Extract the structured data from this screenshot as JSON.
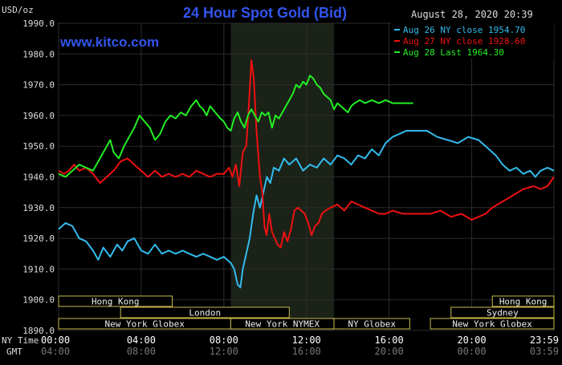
{
  "chart_data": {
    "type": "line",
    "title": "24 Hour Spot Gold (Bid)",
    "unit_label": "USD/oz",
    "timestamp": "August 28, 2020 20:39",
    "watermark": "www.kitco.com",
    "ylim": [
      1890,
      1990
    ],
    "yticks": [
      "1990.0",
      "1980.0",
      "1970.0",
      "1960.0",
      "1950.0",
      "1940.0",
      "1930.0",
      "1920.0",
      "1910.0",
      "1900.0",
      "1890.0"
    ],
    "xlim": [
      0,
      1439
    ],
    "x_row_labels": {
      "ny": "NY Time",
      "gmt": "GMT"
    },
    "xticks": [
      {
        "x": 0,
        "ny": "00:00",
        "gmt": "04:00"
      },
      {
        "x": 240,
        "ny": "04:00",
        "gmt": "08:00"
      },
      {
        "x": 480,
        "ny": "08:00",
        "gmt": "12:00"
      },
      {
        "x": 720,
        "ny": "12:00",
        "gmt": "16:00"
      },
      {
        "x": 960,
        "ny": "16:00",
        "gmt": "20:00"
      },
      {
        "x": 1200,
        "ny": "20:00",
        "gmt": "00:00"
      },
      {
        "x": 1439,
        "ny": "23:59",
        "gmt": "03:59"
      }
    ],
    "shaded_region": [
      500,
      800
    ],
    "sessions": [
      {
        "label": "Hong Kong",
        "start": 0,
        "end": 330,
        "row": 0
      },
      {
        "label": "Hong Kong",
        "start": 1260,
        "end": 1439,
        "row": 0
      },
      {
        "label": "London",
        "start": 180,
        "end": 670,
        "row": 1
      },
      {
        "label": "Sydney",
        "start": 1140,
        "end": 1439,
        "row": 1
      },
      {
        "label": "New York Globex",
        "start": 0,
        "end": 500,
        "row": 2
      },
      {
        "label": "New York NYMEX",
        "start": 500,
        "end": 800,
        "row": 2
      },
      {
        "label": "NY Globex",
        "start": 800,
        "end": 1020,
        "row": 2
      },
      {
        "label": "New York Globex",
        "start": 1080,
        "end": 1439,
        "row": 2
      }
    ],
    "series": [
      {
        "name": "Aug 26 NY close 1954.70",
        "color": "#33bbee",
        "points": [
          [
            0,
            1923
          ],
          [
            20,
            1925
          ],
          [
            40,
            1924
          ],
          [
            60,
            1920
          ],
          [
            80,
            1919
          ],
          [
            100,
            1916
          ],
          [
            115,
            1913
          ],
          [
            130,
            1917
          ],
          [
            150,
            1914
          ],
          [
            170,
            1918
          ],
          [
            185,
            1916
          ],
          [
            200,
            1919
          ],
          [
            220,
            1920
          ],
          [
            240,
            1916
          ],
          [
            260,
            1915
          ],
          [
            280,
            1918
          ],
          [
            300,
            1915
          ],
          [
            320,
            1916
          ],
          [
            340,
            1915
          ],
          [
            360,
            1916
          ],
          [
            380,
            1915
          ],
          [
            400,
            1914
          ],
          [
            420,
            1915
          ],
          [
            440,
            1914
          ],
          [
            460,
            1913
          ],
          [
            480,
            1914
          ],
          [
            500,
            1912
          ],
          [
            510,
            1910
          ],
          [
            520,
            1905
          ],
          [
            528,
            1904
          ],
          [
            535,
            1910
          ],
          [
            545,
            1915
          ],
          [
            555,
            1920
          ],
          [
            565,
            1928
          ],
          [
            575,
            1934
          ],
          [
            585,
            1930
          ],
          [
            595,
            1935
          ],
          [
            605,
            1940
          ],
          [
            615,
            1938
          ],
          [
            625,
            1943
          ],
          [
            640,
            1942
          ],
          [
            655,
            1946
          ],
          [
            670,
            1944
          ],
          [
            690,
            1946
          ],
          [
            710,
            1942
          ],
          [
            730,
            1944
          ],
          [
            750,
            1943
          ],
          [
            770,
            1946
          ],
          [
            790,
            1944
          ],
          [
            810,
            1947
          ],
          [
            830,
            1946
          ],
          [
            850,
            1944
          ],
          [
            870,
            1947
          ],
          [
            890,
            1946
          ],
          [
            910,
            1949
          ],
          [
            930,
            1947
          ],
          [
            950,
            1951
          ],
          [
            970,
            1953
          ],
          [
            990,
            1954
          ],
          [
            1010,
            1955
          ],
          [
            1040,
            1955
          ],
          [
            1070,
            1955
          ],
          [
            1100,
            1953
          ],
          [
            1130,
            1952
          ],
          [
            1160,
            1951
          ],
          [
            1190,
            1953
          ],
          [
            1220,
            1952
          ],
          [
            1250,
            1949
          ],
          [
            1270,
            1947
          ],
          [
            1290,
            1944
          ],
          [
            1310,
            1942
          ],
          [
            1330,
            1943
          ],
          [
            1350,
            1941
          ],
          [
            1370,
            1942
          ],
          [
            1385,
            1940
          ],
          [
            1400,
            1942
          ],
          [
            1420,
            1943
          ],
          [
            1439,
            1942
          ]
        ]
      },
      {
        "name": "Aug 27 NY close 1928.60",
        "color": "#ee1111",
        "points": [
          [
            0,
            1942
          ],
          [
            15,
            1941
          ],
          [
            30,
            1942
          ],
          [
            45,
            1944
          ],
          [
            60,
            1942
          ],
          [
            80,
            1943
          ],
          [
            100,
            1941
          ],
          [
            120,
            1938
          ],
          [
            140,
            1940
          ],
          [
            160,
            1942
          ],
          [
            180,
            1945
          ],
          [
            200,
            1946
          ],
          [
            220,
            1944
          ],
          [
            240,
            1942
          ],
          [
            260,
            1940
          ],
          [
            280,
            1942
          ],
          [
            300,
            1940
          ],
          [
            320,
            1941
          ],
          [
            340,
            1940
          ],
          [
            360,
            1941
          ],
          [
            380,
            1940
          ],
          [
            400,
            1942
          ],
          [
            420,
            1941
          ],
          [
            440,
            1940
          ],
          [
            460,
            1941
          ],
          [
            480,
            1941
          ],
          [
            495,
            1943
          ],
          [
            505,
            1940
          ],
          [
            515,
            1944
          ],
          [
            525,
            1937
          ],
          [
            535,
            1948
          ],
          [
            545,
            1950
          ],
          [
            552,
            1962
          ],
          [
            560,
            1978
          ],
          [
            567,
            1972
          ],
          [
            575,
            1955
          ],
          [
            585,
            1940
          ],
          [
            592,
            1935
          ],
          [
            598,
            1924
          ],
          [
            604,
            1921
          ],
          [
            612,
            1928
          ],
          [
            620,
            1922
          ],
          [
            628,
            1920
          ],
          [
            636,
            1918
          ],
          [
            645,
            1917
          ],
          [
            655,
            1922
          ],
          [
            665,
            1919
          ],
          [
            675,
            1923
          ],
          [
            685,
            1929
          ],
          [
            695,
            1930
          ],
          [
            705,
            1929
          ],
          [
            715,
            1928
          ],
          [
            725,
            1925
          ],
          [
            735,
            1921
          ],
          [
            745,
            1924
          ],
          [
            755,
            1925
          ],
          [
            765,
            1928
          ],
          [
            775,
            1929
          ],
          [
            790,
            1930
          ],
          [
            810,
            1931
          ],
          [
            830,
            1929
          ],
          [
            850,
            1932
          ],
          [
            870,
            1931
          ],
          [
            890,
            1930
          ],
          [
            910,
            1929
          ],
          [
            930,
            1928
          ],
          [
            950,
            1928
          ],
          [
            970,
            1929
          ],
          [
            1000,
            1928
          ],
          [
            1040,
            1928
          ],
          [
            1080,
            1928
          ],
          [
            1110,
            1929
          ],
          [
            1140,
            1927
          ],
          [
            1170,
            1928
          ],
          [
            1200,
            1926
          ],
          [
            1220,
            1927
          ],
          [
            1240,
            1928
          ],
          [
            1260,
            1930
          ],
          [
            1290,
            1932
          ],
          [
            1320,
            1934
          ],
          [
            1350,
            1936
          ],
          [
            1380,
            1937
          ],
          [
            1400,
            1936
          ],
          [
            1420,
            1937
          ],
          [
            1439,
            1940
          ]
        ]
      },
      {
        "name": "Aug 28 Last 1964.30",
        "color": "#22ee22",
        "points": [
          [
            0,
            1941
          ],
          [
            20,
            1940
          ],
          [
            40,
            1942
          ],
          [
            60,
            1944
          ],
          [
            80,
            1943
          ],
          [
            100,
            1942
          ],
          [
            120,
            1946
          ],
          [
            140,
            1950
          ],
          [
            150,
            1952
          ],
          [
            160,
            1948
          ],
          [
            175,
            1946
          ],
          [
            190,
            1950
          ],
          [
            205,
            1953
          ],
          [
            220,
            1956
          ],
          [
            235,
            1960
          ],
          [
            250,
            1958
          ],
          [
            265,
            1956
          ],
          [
            280,
            1952
          ],
          [
            295,
            1954
          ],
          [
            310,
            1958
          ],
          [
            325,
            1960
          ],
          [
            340,
            1959
          ],
          [
            355,
            1961
          ],
          [
            370,
            1960
          ],
          [
            385,
            1963
          ],
          [
            400,
            1965
          ],
          [
            410,
            1963
          ],
          [
            420,
            1962
          ],
          [
            430,
            1960
          ],
          [
            440,
            1963
          ],
          [
            455,
            1961
          ],
          [
            470,
            1959
          ],
          [
            480,
            1958
          ],
          [
            490,
            1956
          ],
          [
            500,
            1955
          ],
          [
            510,
            1959
          ],
          [
            520,
            1961
          ],
          [
            530,
            1958
          ],
          [
            540,
            1956
          ],
          [
            550,
            1960
          ],
          [
            560,
            1962
          ],
          [
            570,
            1960
          ],
          [
            580,
            1958
          ],
          [
            590,
            1961
          ],
          [
            600,
            1960
          ],
          [
            610,
            1961
          ],
          [
            620,
            1956
          ],
          [
            630,
            1960
          ],
          [
            640,
            1959
          ],
          [
            650,
            1961
          ],
          [
            660,
            1963
          ],
          [
            670,
            1965
          ],
          [
            680,
            1967
          ],
          [
            690,
            1970
          ],
          [
            700,
            1969
          ],
          [
            710,
            1971
          ],
          [
            720,
            1970
          ],
          [
            730,
            1973
          ],
          [
            740,
            1972
          ],
          [
            750,
            1970
          ],
          [
            760,
            1969
          ],
          [
            770,
            1967
          ],
          [
            780,
            1966
          ],
          [
            790,
            1965
          ],
          [
            800,
            1962
          ],
          [
            810,
            1964
          ],
          [
            820,
            1963
          ],
          [
            830,
            1962
          ],
          [
            840,
            1961
          ],
          [
            850,
            1963
          ],
          [
            860,
            1964
          ],
          [
            875,
            1965
          ],
          [
            890,
            1964
          ],
          [
            910,
            1965
          ],
          [
            930,
            1964
          ],
          [
            950,
            1965
          ],
          [
            970,
            1964
          ],
          [
            990,
            1964
          ],
          [
            1010,
            1964
          ],
          [
            1030,
            1964
          ]
        ]
      }
    ]
  }
}
